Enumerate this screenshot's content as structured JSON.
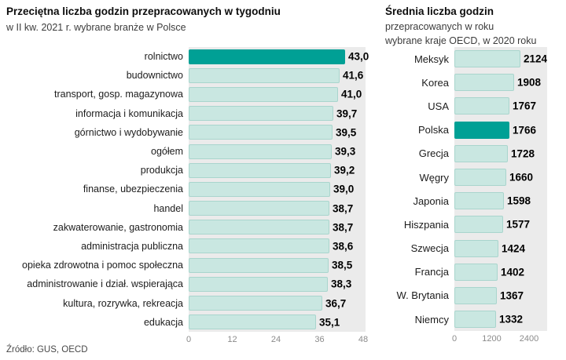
{
  "page": {
    "source": "Źródło: GUS, OECD"
  },
  "chart_data": [
    {
      "type": "bar",
      "orientation": "horizontal",
      "title": "Przeciętna liczba godzin przepracowanych w tygodniu",
      "subtitle": "w II kw. 2021 r. wybrane branże w Polsce",
      "categories": [
        "rolnictwo",
        "budownictwo",
        "transport, gosp. magazynowa",
        "informacja i komunikacja",
        "górnictwo i wydobywanie",
        "ogółem",
        "produkcja",
        "finanse, ubezpieczenia",
        "handel",
        "zakwaterowanie, gastronomia",
        "administracja publiczna",
        "opieka zdrowotna i pomoc społeczna",
        "administrowanie i dział. wspierająca",
        "kultura, rozrywka, rekreacja",
        "edukacja"
      ],
      "values": [
        43.0,
        41.6,
        41.0,
        39.7,
        39.5,
        39.3,
        39.2,
        39.0,
        38.7,
        38.7,
        38.6,
        38.5,
        38.3,
        36.7,
        35.1
      ],
      "value_labels": [
        "43,0",
        "41,6",
        "41,0",
        "39,7",
        "39,5",
        "39,3",
        "39,2",
        "39,0",
        "38,7",
        "38,7",
        "38,6",
        "38,5",
        "38,3",
        "36,7",
        "35,1"
      ],
      "highlight_index": 0,
      "highlight_category": "rolnictwo",
      "xlim": [
        0,
        48
      ],
      "xticks": [
        0,
        12,
        24,
        36,
        48
      ],
      "grid": false,
      "legend": false,
      "colors": {
        "bar": "#c9e7e1",
        "bar_border": "#a9d5cd",
        "highlight": "#00a095",
        "plot_bg": "#ebebeb"
      }
    },
    {
      "type": "bar",
      "orientation": "horizontal",
      "title": "Średnia liczba godzin",
      "subtitle": "przepracowanych w roku",
      "subtitle2": "wybrane kraje OECD, w 2020 roku",
      "categories": [
        "Meksyk",
        "Korea",
        "USA",
        "Polska",
        "Grecja",
        "Węgry",
        "Japonia",
        "Hiszpania",
        "Szwecja",
        "Francja",
        "W. Brytania",
        "Niemcy"
      ],
      "values": [
        2124,
        1908,
        1767,
        1766,
        1728,
        1660,
        1598,
        1577,
        1424,
        1402,
        1367,
        1332
      ],
      "value_labels": [
        "2124",
        "1908",
        "1767",
        "1766",
        "1728",
        "1660",
        "1598",
        "1577",
        "1424",
        "1402",
        "1367",
        "1332"
      ],
      "highlight_index": 3,
      "highlight_category": "Polska",
      "xlim": [
        0,
        2400
      ],
      "xticks": [
        0,
        1200,
        2400
      ],
      "grid": false,
      "legend": false,
      "colors": {
        "bar": "#c9e7e1",
        "bar_border": "#a9d5cd",
        "highlight": "#00a095",
        "plot_bg": "#ebebeb"
      }
    }
  ]
}
